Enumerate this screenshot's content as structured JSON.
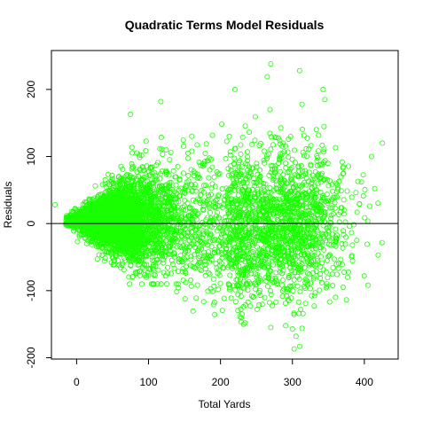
{
  "chart_data": {
    "type": "scatter",
    "title": "Quadratic Terms Model Residuals",
    "xlabel": "Total Yards",
    "ylabel": "Residuals",
    "xlim": [
      -35,
      447
    ],
    "ylim": [
      -202,
      258
    ],
    "x_ticks": [
      0,
      100,
      200,
      300,
      400
    ],
    "y_ticks": [
      -200,
      -100,
      0,
      100,
      200
    ],
    "x_tick_labels": [
      "0",
      "100",
      "200",
      "300",
      "400"
    ],
    "y_tick_labels": [
      "-200",
      "-100",
      "0",
      "100",
      "200"
    ],
    "reference_line_y": 0,
    "grid": false,
    "legend": "none",
    "marker": "open-circle",
    "point_color": "#1aff00",
    "clusters": [
      {
        "description": "dense core",
        "x_range": [
          -15,
          150
        ],
        "y_center": 5,
        "y_spread_max": 90,
        "approx_points": 3500
      },
      {
        "description": "mid-range scatter",
        "x_range": [
          100,
          240
        ],
        "y_center": 0,
        "y_spread_max": 150,
        "approx_points": 700
      },
      {
        "description": "long-yardage cluster",
        "x_range": [
          210,
          430
        ],
        "y_center": 0,
        "y_spread_max": 200,
        "approx_points": 1500
      }
    ],
    "notable_points": [
      {
        "x": 270,
        "y": 238
      },
      {
        "x": 310,
        "y": 228
      },
      {
        "x": 265,
        "y": 219
      },
      {
        "x": 220,
        "y": 200
      },
      {
        "x": 345,
        "y": 185
      },
      {
        "x": 117,
        "y": 182
      },
      {
        "x": 75,
        "y": 163
      },
      {
        "x": 410,
        "y": 100
      },
      {
        "x": 425,
        "y": 120
      },
      {
        "x": 270,
        "y": -155
      },
      {
        "x": 300,
        "y": -157
      },
      {
        "x": 305,
        "y": -168
      },
      {
        "x": 310,
        "y": -183
      },
      {
        "x": 360,
        "y": -110
      },
      {
        "x": 230,
        "y": -135
      },
      {
        "x": -30,
        "y": 28
      },
      {
        "x": 405,
        "y": -92
      }
    ]
  }
}
